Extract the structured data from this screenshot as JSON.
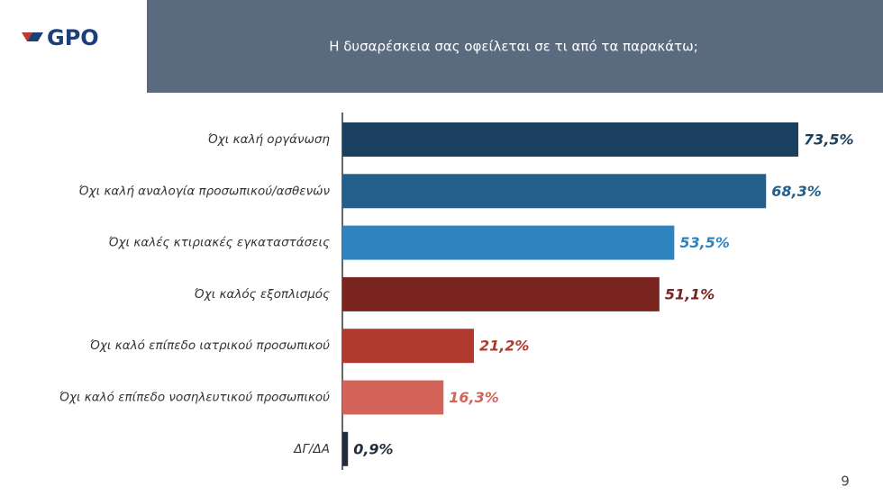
{
  "logo": "GPO",
  "page_number": "9",
  "chart_data": {
    "type": "barh",
    "title": "Η δυσαρέσκεια σας οφείλεται σε τι από τα παρακάτω;",
    "categories": [
      "Όχι καλή οργάνωση",
      "Όχι καλή αναλογία προσωπικού/ασθενών",
      "Όχι καλές κτιριακές εγκαταστάσεις",
      "Όχι καλός εξοπλισμός",
      "Όχι καλό επίπεδο ιατρικού προσωπικού",
      "Όχι καλό επίπεδο νοσηλευτικού προσωπικού",
      "ΔΓ/ΔΑ"
    ],
    "values": [
      73.5,
      68.3,
      53.5,
      51.1,
      21.2,
      16.3,
      0.9
    ],
    "value_labels": [
      "73,5%",
      "68,3%",
      "53,5%",
      "51,1%",
      "21,2%",
      "16,3%",
      "0,9%"
    ],
    "colors": [
      "#1b3f5e",
      "#245f8c",
      "#2e84bf",
      "#7a2420",
      "#b03a2e",
      "#d4645a",
      "#1f2d3d"
    ]
  }
}
